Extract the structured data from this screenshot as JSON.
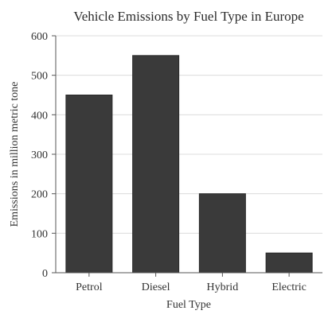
{
  "chart_data": {
    "type": "bar",
    "title": "Vehicle Emissions by Fuel Type in Europe",
    "xlabel": "Fuel Type",
    "ylabel": "Emissions in million metric tone",
    "categories": [
      "Petrol",
      "Diesel",
      "Hybrid",
      "Electric"
    ],
    "values": [
      450,
      550,
      200,
      50
    ],
    "ylim": [
      0,
      600
    ],
    "yticks": [
      0,
      100,
      200,
      300,
      400,
      500,
      600
    ],
    "grid": true,
    "bar_color": "#3a3a3a",
    "legend": "none"
  }
}
